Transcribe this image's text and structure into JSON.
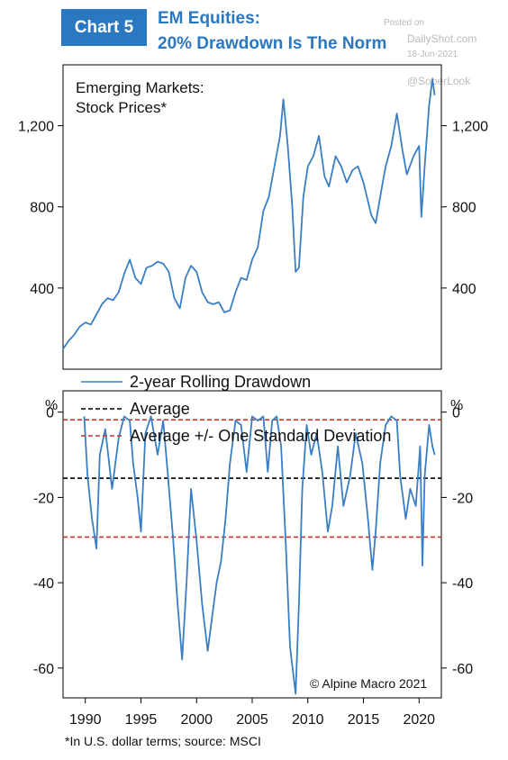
{
  "header": {
    "chart_label": "Chart 5",
    "title_line1": "EM Equities:",
    "title_line2": "20% Drawdown Is The Norm"
  },
  "watermark": {
    "posted": "Posted on",
    "site": "DailyShot.com",
    "date": "18-Jun-2021",
    "handle": "@SoberLook"
  },
  "footnote": "*In U.S. dollar terms; source: MSCI",
  "colors": {
    "title_blue": "#2a78c0",
    "series_blue": "#3a7fc4",
    "average_black": "#000000",
    "stdev_red": "#c0392b"
  },
  "chart_data": [
    {
      "type": "line",
      "title": "Emerging Markets:\nStock Prices*",
      "xlim": [
        1988,
        2022
      ],
      "ylim": [
        0,
        1500
      ],
      "yticks": [
        400,
        800,
        1200
      ],
      "ytick_labels": [
        "400",
        "800",
        "1,200"
      ],
      "series": [
        {
          "x": [
            1988.0,
            1988.5,
            1989.0,
            1989.5,
            1990.0,
            1990.5,
            1991.0,
            1991.5,
            1992.0,
            1992.5,
            1993.0,
            1993.5,
            1994.0,
            1994.5,
            1995.0,
            1995.5,
            1996.0,
            1996.5,
            1997.0,
            1997.5,
            1998.0,
            1998.5,
            1999.0,
            1999.5,
            2000.0,
            2000.5,
            2001.0,
            2001.5,
            2002.0,
            2002.5,
            2003.0,
            2003.5,
            2004.0,
            2004.5,
            2005.0,
            2005.5,
            2006.0,
            2006.5,
            2007.0,
            2007.5,
            2007.8,
            2008.2,
            2008.6,
            2008.9,
            2009.2,
            2009.6,
            2010.0,
            2010.5,
            2011.0,
            2011.5,
            2011.9,
            2012.5,
            2013.0,
            2013.5,
            2014.0,
            2014.5,
            2015.0,
            2015.7,
            2016.1,
            2016.6,
            2017.0,
            2017.5,
            2018.0,
            2018.5,
            2018.9,
            2019.5,
            2020.0,
            2020.2,
            2020.5,
            2020.9,
            2021.2,
            2021.4
          ],
          "values": [
            100,
            140,
            170,
            210,
            230,
            220,
            270,
            320,
            350,
            340,
            380,
            470,
            540,
            450,
            420,
            500,
            510,
            530,
            520,
            480,
            350,
            300,
            450,
            510,
            480,
            380,
            330,
            320,
            330,
            280,
            290,
            380,
            450,
            440,
            540,
            600,
            780,
            850,
            1000,
            1150,
            1330,
            1100,
            800,
            480,
            500,
            850,
            1000,
            1050,
            1150,
            950,
            900,
            1050,
            1000,
            920,
            980,
            1000,
            920,
            760,
            720,
            880,
            1000,
            1100,
            1260,
            1080,
            960,
            1050,
            1100,
            750,
            1000,
            1300,
            1430,
            1350
          ]
        }
      ]
    },
    {
      "type": "line",
      "xlim": [
        1988,
        2022
      ],
      "ylim": [
        -67,
        5
      ],
      "yticks": [
        0,
        -20,
        -40,
        -60
      ],
      "ytick_labels": [
        "0",
        "-20",
        "-40",
        "-60"
      ],
      "xticks": [
        1990,
        1995,
        2000,
        2005,
        2010,
        2015,
        2020
      ],
      "y_unit": "%",
      "series": [
        {
          "name": "2-year Rolling Drawdown",
          "x": [
            1989.9,
            1990.2,
            1990.6,
            1991.0,
            1991.3,
            1991.8,
            1992.4,
            1993.0,
            1993.5,
            1994.0,
            1994.3,
            1994.7,
            1995.0,
            1995.4,
            1995.9,
            1996.5,
            1997.0,
            1997.4,
            1997.9,
            1998.3,
            1998.7,
            1999.1,
            1999.5,
            2000.0,
            2000.5,
            2001.0,
            2001.4,
            2001.8,
            2002.2,
            2002.6,
            2003.0,
            2003.5,
            2004.0,
            2004.5,
            2005.0,
            2005.5,
            2006.0,
            2006.4,
            2006.8,
            2007.2,
            2007.6,
            2008.0,
            2008.4,
            2008.9,
            2009.2,
            2009.5,
            2009.9,
            2010.3,
            2010.8,
            2011.3,
            2011.8,
            2012.2,
            2012.7,
            2013.2,
            2013.8,
            2014.3,
            2014.9,
            2015.4,
            2015.8,
            2016.1,
            2016.5,
            2017.0,
            2017.5,
            2018.0,
            2018.3,
            2018.8,
            2019.2,
            2019.7,
            2020.1,
            2020.3,
            2020.5,
            2020.9,
            2021.2,
            2021.4
          ],
          "values": [
            -1,
            -15,
            -25,
            -32,
            -10,
            -4,
            -18,
            -6,
            -1,
            -2,
            -12,
            -20,
            -28,
            -5,
            -1,
            -10,
            -2,
            -14,
            -30,
            -45,
            -58,
            -40,
            -18,
            -30,
            -45,
            -56,
            -48,
            -40,
            -35,
            -25,
            -12,
            -2,
            -3,
            -14,
            -1,
            -2,
            -1,
            -14,
            -2,
            -1,
            -8,
            -30,
            -55,
            -66,
            -45,
            -18,
            -3,
            -10,
            -5,
            -14,
            -28,
            -22,
            -8,
            -22,
            -15,
            -5,
            -12,
            -25,
            -37,
            -28,
            -12,
            -3,
            -1,
            -2,
            -15,
            -25,
            -18,
            -22,
            -8,
            -36,
            -15,
            -3,
            -8,
            -10
          ]
        },
        {
          "name": "Average",
          "constant": -15.5
        },
        {
          "name": "Average +/- One Standard Deviation",
          "constant": [
            -1.8,
            -29.3
          ]
        }
      ],
      "legend": [
        "2-year Rolling Drawdown",
        "Average",
        "Average +/- One Standard Deviation"
      ],
      "legend_placement": "top-left",
      "credit": "© Alpine Macro 2021"
    }
  ]
}
